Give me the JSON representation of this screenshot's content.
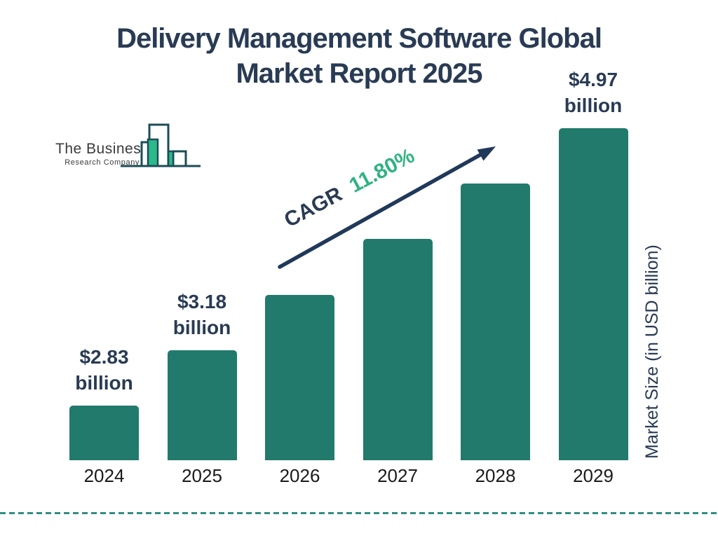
{
  "page": {
    "title_line1": "Delivery Management Software Global",
    "title_line2": "Market Report 2025"
  },
  "logo": {
    "name": "The Business",
    "subtitle": "Research Company"
  },
  "chart_data": {
    "type": "bar",
    "title": "Delivery Management Software Global Market Report 2025",
    "categories": [
      "2024",
      "2025",
      "2026",
      "2027",
      "2028",
      "2029"
    ],
    "values": [
      2.83,
      3.18,
      3.56,
      3.97,
      4.44,
      4.97
    ],
    "values_labeled_on_chart": [
      {
        "index": 0,
        "line1": "$2.83",
        "line2": "billion"
      },
      {
        "index": 1,
        "line1": "$3.18",
        "line2": "billion"
      },
      {
        "index": 5,
        "line1": "$4.97",
        "line2": "billion"
      }
    ],
    "xlabel": "",
    "ylabel": "Market Size (in USD billion)",
    "annotation": {
      "label": "CAGR",
      "value": "11.80%"
    },
    "legend": "none",
    "grid": false,
    "baseline": "non-zero (bar heights stylized with equal steps)",
    "colors": {
      "bar": "#227A6C",
      "navy": "#293B54",
      "cagr_green": "#2FB381",
      "arrow": "#20395A",
      "dashed_line": "#2F8D84",
      "logo_outline": "#1D4D57",
      "logo_green_fill": "#2CB98C",
      "year_label": "#1A1A1A"
    }
  }
}
